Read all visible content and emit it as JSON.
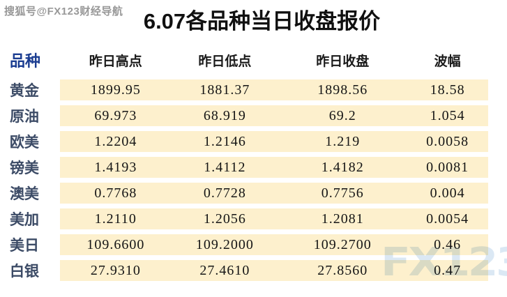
{
  "page": {
    "watermark_top": "搜狐号@FX123财经导航",
    "watermark_logo": "FX123"
  },
  "chart_data": {
    "type": "table",
    "title": "6.07各品种当日收盘报价",
    "columns": [
      "品种",
      "昨日高点",
      "昨日低点",
      "昨日收盘",
      "波幅"
    ],
    "rows": [
      [
        "黄金",
        "1899.95",
        "1881.37",
        "1898.56",
        "18.58"
      ],
      [
        "原油",
        "69.973",
        "68.919",
        "69.2",
        "1.054"
      ],
      [
        "欧美",
        "1.2204",
        "1.2146",
        "1.219",
        "0.0058"
      ],
      [
        "镑美",
        "1.4193",
        "1.4112",
        "1.4182",
        "0.0081"
      ],
      [
        "澳美",
        "0.7768",
        "0.7728",
        "0.7756",
        "0.004"
      ],
      [
        "美加",
        "1.2110",
        "1.2056",
        "1.2081",
        "0.0054"
      ],
      [
        "美日",
        "109.6600",
        "109.2000",
        "109.2700",
        "0.46"
      ],
      [
        "白银",
        "27.9310",
        "27.4610",
        "27.8560",
        "0.47"
      ]
    ]
  },
  "colors": {
    "band": "#fdf0cd",
    "label": "#3c4b66",
    "header_product": "#1b3d91",
    "header_text": "#1a1a1a",
    "watermark_blue": "#dbe8f4"
  }
}
